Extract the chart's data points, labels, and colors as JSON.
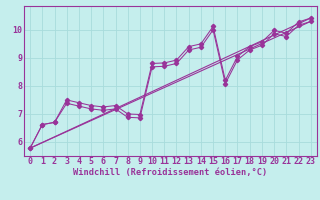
{
  "xlabel": "Windchill (Refroidissement éolien,°C)",
  "background_color": "#c5eeed",
  "line_color": "#993399",
  "xlim": [
    -0.5,
    23.5
  ],
  "ylim": [
    5.5,
    10.85
  ],
  "xticks": [
    0,
    1,
    2,
    3,
    4,
    5,
    6,
    7,
    8,
    9,
    10,
    11,
    12,
    13,
    14,
    15,
    16,
    17,
    18,
    19,
    20,
    21,
    22,
    23
  ],
  "yticks": [
    6,
    7,
    8,
    9,
    10
  ],
  "series_main": {
    "x": [
      0,
      1,
      2,
      3,
      4,
      5,
      6,
      7,
      8,
      9,
      10,
      11,
      12,
      13,
      14,
      15,
      16,
      17,
      18,
      19,
      20,
      21,
      22,
      23
    ],
    "y": [
      5.78,
      6.62,
      6.7,
      7.5,
      7.4,
      7.3,
      7.25,
      7.3,
      7.0,
      6.98,
      8.8,
      8.82,
      8.92,
      9.4,
      9.5,
      10.12,
      8.2,
      9.05,
      9.4,
      9.57,
      9.98,
      9.88,
      10.28,
      10.42
    ]
  },
  "series2": {
    "x": [
      0,
      1,
      2,
      3,
      4,
      5,
      6,
      7,
      8,
      9,
      10,
      11,
      12,
      13,
      14,
      15,
      16,
      17,
      18,
      19,
      20,
      21,
      22,
      23
    ],
    "y": [
      5.78,
      6.62,
      6.7,
      7.38,
      7.28,
      7.18,
      7.13,
      7.18,
      6.88,
      6.86,
      8.68,
      8.7,
      8.8,
      9.28,
      9.38,
      10.0,
      8.08,
      8.93,
      9.28,
      9.45,
      9.86,
      9.76,
      10.16,
      10.3
    ]
  },
  "series_line1": {
    "x": [
      0,
      23
    ],
    "y": [
      5.78,
      10.42
    ]
  },
  "series_line2": {
    "x": [
      0,
      23
    ],
    "y": [
      5.78,
      10.3
    ]
  },
  "grid_color": "#a8dcdc",
  "tick_color": "#993399",
  "font_family": "monospace",
  "tick_fontsize": 6.0,
  "xlabel_fontsize": 6.2
}
